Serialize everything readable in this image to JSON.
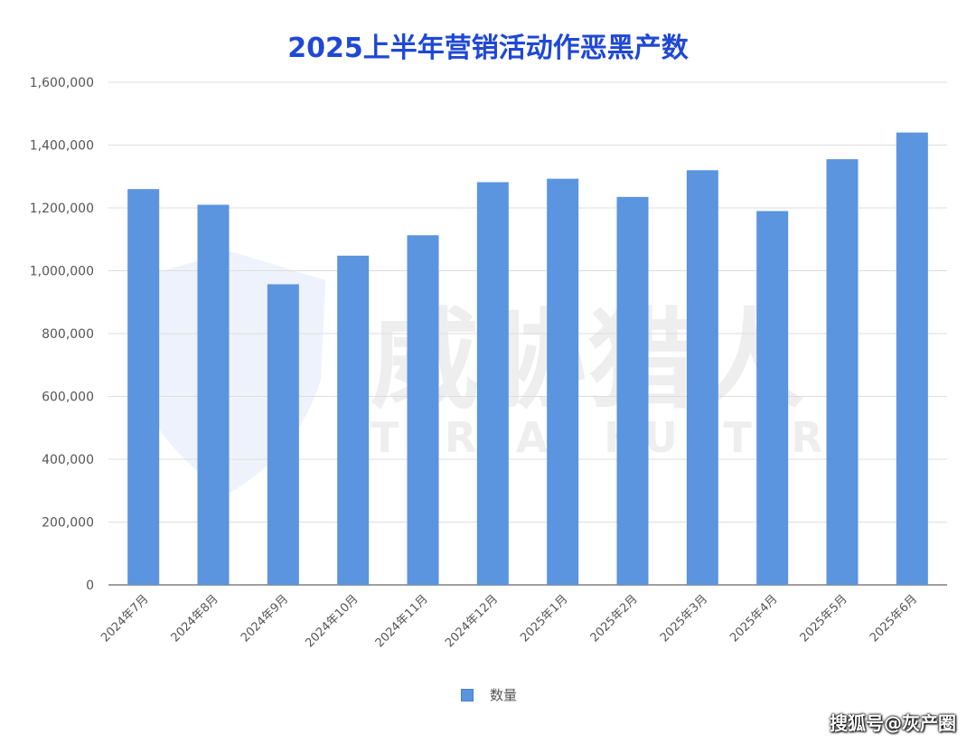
{
  "chart_data": {
    "type": "bar",
    "title": "2025上半年营销活动作恶黑产数",
    "categories": [
      "2024年7月",
      "2024年8月",
      "2024年9月",
      "2024年10月",
      "2024年11月",
      "2024年12月",
      "2025年1月",
      "2025年2月",
      "2025年3月",
      "2025年4月",
      "2025年5月",
      "2025年6月"
    ],
    "series": [
      {
        "name": "数量",
        "values": [
          1260000,
          1210000,
          957000,
          1048000,
          1113000,
          1282000,
          1293000,
          1235000,
          1320000,
          1190000,
          1355000,
          1440000
        ]
      }
    ],
    "y_ticks": [
      "0",
      "200,000",
      "400,000",
      "600,000",
      "800,000",
      "1,000,000",
      "1,200,000",
      "1,400,000",
      "1,600,000"
    ],
    "ylim": [
      0,
      1600000
    ],
    "grid": true,
    "legend_position": "bottom",
    "bar_color": "#5b94df"
  },
  "watermark": {
    "brand_cn": "威胁猎人",
    "brand_en": "THREAT HUNTER"
  },
  "source_tag": "搜狐号@灰产圈"
}
